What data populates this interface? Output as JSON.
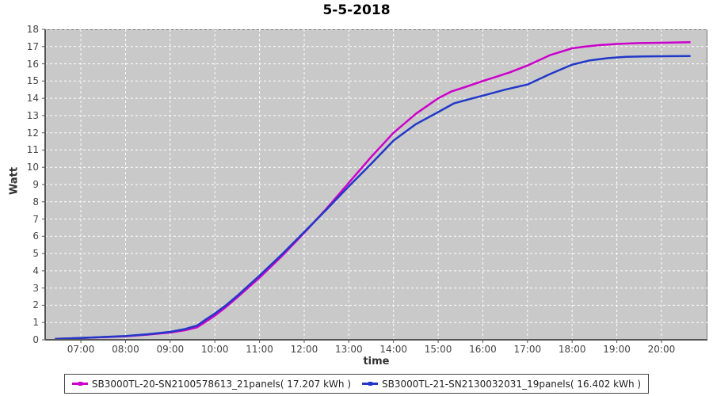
{
  "title": "5-5-2018",
  "colors": {
    "plot_background": "#c9c9c9",
    "grid": "#ffffff",
    "axis": "#555555",
    "tick_label": "#444444",
    "series1": "#cc00cc",
    "series2": "#2238c8"
  },
  "chart_data": {
    "type": "line",
    "title": "5-5-2018",
    "xlabel": "time",
    "ylabel": "Watt",
    "xlim": [
      6.2,
      21.03
    ],
    "ylim": [
      0,
      18
    ],
    "grid": "white dashed on gray background",
    "legend_position": "bottom-center",
    "x_ticks": [
      {
        "t": 7,
        "label": "07:00"
      },
      {
        "t": 8,
        "label": "08:00"
      },
      {
        "t": 9,
        "label": "09:00"
      },
      {
        "t": 10,
        "label": "10:00"
      },
      {
        "t": 11,
        "label": "11:00"
      },
      {
        "t": 12,
        "label": "12:00"
      },
      {
        "t": 13,
        "label": "13:00"
      },
      {
        "t": 14,
        "label": "14:00"
      },
      {
        "t": 15,
        "label": "15:00"
      },
      {
        "t": 16,
        "label": "16:00"
      },
      {
        "t": 17,
        "label": "17:00"
      },
      {
        "t": 18,
        "label": "18:00"
      },
      {
        "t": 19,
        "label": "19:00"
      },
      {
        "t": 20,
        "label": "20:00"
      }
    ],
    "y_ticks": [
      0,
      1,
      2,
      3,
      4,
      5,
      6,
      7,
      8,
      9,
      10,
      11,
      12,
      13,
      14,
      15,
      16,
      17,
      18
    ],
    "series": [
      {
        "name": "SB3000TL-20-SN2100578613_21panels( 17.207 kWh )",
        "color": "#cc00cc",
        "total_kwh": "17.207",
        "points": [
          [
            6.42,
            0.05
          ],
          [
            6.75,
            0.08
          ],
          [
            7.0,
            0.1
          ],
          [
            7.5,
            0.15
          ],
          [
            8.0,
            0.2
          ],
          [
            8.5,
            0.3
          ],
          [
            9.0,
            0.42
          ],
          [
            9.33,
            0.55
          ],
          [
            9.6,
            0.72
          ],
          [
            9.8,
            1.05
          ],
          [
            10.0,
            1.4
          ],
          [
            10.25,
            1.9
          ],
          [
            10.5,
            2.45
          ],
          [
            11.0,
            3.6
          ],
          [
            11.5,
            4.85
          ],
          [
            12.0,
            6.2
          ],
          [
            12.5,
            7.6
          ],
          [
            13.0,
            9.1
          ],
          [
            13.5,
            10.6
          ],
          [
            14.0,
            12.0
          ],
          [
            14.5,
            13.1
          ],
          [
            15.0,
            14.0
          ],
          [
            15.3,
            14.4
          ],
          [
            15.6,
            14.65
          ],
          [
            16.0,
            15.0
          ],
          [
            16.3,
            15.25
          ],
          [
            16.6,
            15.5
          ],
          [
            17.0,
            15.9
          ],
          [
            17.5,
            16.5
          ],
          [
            18.0,
            16.9
          ],
          [
            18.3,
            17.0
          ],
          [
            18.6,
            17.08
          ],
          [
            19.0,
            17.15
          ],
          [
            19.5,
            17.2
          ],
          [
            20.0,
            17.22
          ],
          [
            20.65,
            17.25
          ]
        ]
      },
      {
        "name": "SB3000TL-21-SN2130032031_19panels( 16.402 kWh )",
        "color": "#2238c8",
        "total_kwh": "16.402",
        "points": [
          [
            6.42,
            0.05
          ],
          [
            6.75,
            0.08
          ],
          [
            7.0,
            0.1
          ],
          [
            7.5,
            0.16
          ],
          [
            8.0,
            0.22
          ],
          [
            8.5,
            0.32
          ],
          [
            9.0,
            0.46
          ],
          [
            9.33,
            0.62
          ],
          [
            9.6,
            0.82
          ],
          [
            9.8,
            1.18
          ],
          [
            10.0,
            1.52
          ],
          [
            10.25,
            2.0
          ],
          [
            10.5,
            2.55
          ],
          [
            11.0,
            3.72
          ],
          [
            11.5,
            4.95
          ],
          [
            12.0,
            6.25
          ],
          [
            12.5,
            7.55
          ],
          [
            13.0,
            8.9
          ],
          [
            13.5,
            10.2
          ],
          [
            14.0,
            11.55
          ],
          [
            14.5,
            12.5
          ],
          [
            15.0,
            13.2
          ],
          [
            15.35,
            13.7
          ],
          [
            15.7,
            13.95
          ],
          [
            16.0,
            14.15
          ],
          [
            16.5,
            14.5
          ],
          [
            17.0,
            14.8
          ],
          [
            17.5,
            15.4
          ],
          [
            18.0,
            15.95
          ],
          [
            18.4,
            16.2
          ],
          [
            18.8,
            16.33
          ],
          [
            19.2,
            16.4
          ],
          [
            19.6,
            16.43
          ],
          [
            20.0,
            16.44
          ],
          [
            20.65,
            16.45
          ]
        ]
      }
    ]
  }
}
